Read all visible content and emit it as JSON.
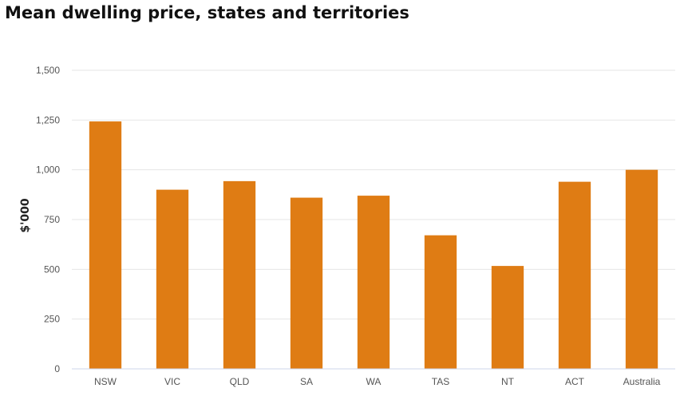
{
  "chart_data": {
    "type": "bar",
    "title": "Mean dwelling price, states and territories",
    "xlabel": "",
    "ylabel": "$'000",
    "categories": [
      "NSW",
      "VIC",
      "QLD",
      "SA",
      "WA",
      "TAS",
      "NT",
      "ACT",
      "Australia"
    ],
    "values": [
      1243,
      900,
      943,
      860,
      870,
      671,
      517,
      940,
      1000
    ],
    "ylim": [
      0,
      1500
    ],
    "yticks": [
      0,
      250,
      500,
      750,
      1000,
      1250,
      1500
    ],
    "ytick_labels": [
      "0",
      "250",
      "500",
      "750",
      "1,000",
      "1,250",
      "1,500"
    ],
    "grid": true,
    "legend": "none",
    "colors": {
      "bar": "#df7c14",
      "grid": "#e6e6e6",
      "axis": "#ccd6eb"
    }
  }
}
